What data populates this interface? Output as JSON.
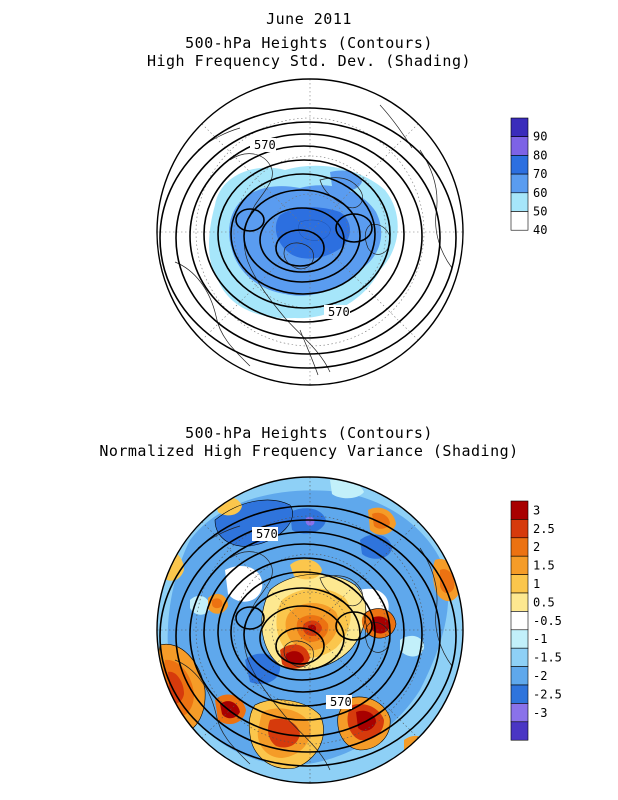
{
  "figure": {
    "date": "June 2011"
  },
  "panel_top": {
    "title_line1": "500-hPa Heights (Contours)",
    "title_line2": "High Frequency Std. Dev. (Shading)",
    "contour_label_1": "570",
    "contour_label_2": "570",
    "colorbar": {
      "labels": [
        "90",
        "80",
        "70",
        "60",
        "50",
        "40"
      ],
      "colors": [
        "#3a2cbb",
        "#7d63e6",
        "#2c6fe0",
        "#5a9cf0",
        "#a6e6fa",
        "#ffffff"
      ]
    }
  },
  "panel_bottom": {
    "title_line1": "500-hPa Heights (Contours)",
    "title_line2": "Normalized High Frequency Variance (Shading)",
    "contour_label_1": "570",
    "contour_label_2": "570",
    "colorbar": {
      "labels": [
        "3",
        "2.5",
        "2",
        "1.5",
        "1",
        "0.5",
        "-0.5",
        "-1",
        "-1.5",
        "-2",
        "-2.5",
        "-3"
      ],
      "colors": [
        "#a80000",
        "#d63a0c",
        "#ec7212",
        "#f59c28",
        "#fbc64c",
        "#fde890",
        "#ffffff",
        "#c2f0fa",
        "#8ed0f6",
        "#5fa8ec",
        "#2f74dc",
        "#8a72ea",
        "#4a36c4"
      ]
    }
  }
}
